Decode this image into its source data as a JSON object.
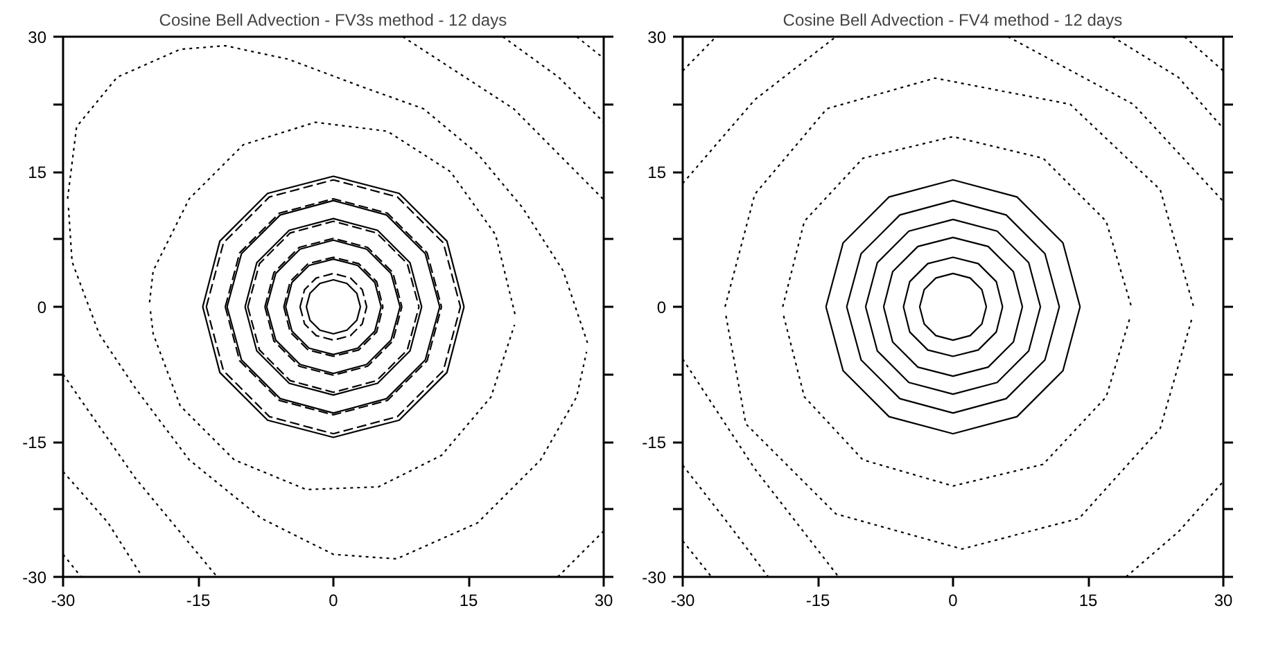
{
  "chart_data": [
    {
      "type": "line",
      "title": "Cosine Bell Advection - FV3s method - 12 days",
      "xlim": [
        -30,
        30
      ],
      "ylim": [
        -30,
        30
      ],
      "xticks": [
        -30,
        -15,
        0,
        15,
        30
      ],
      "yticks": [
        -30,
        {
          "value": -22.5,
          "label": null
        },
        -15,
        {
          "value": -7.5,
          "label": null
        },
        0,
        {
          "value": 7.5,
          "label": null
        },
        15,
        {
          "value": 22.5,
          "label": null
        },
        30
      ],
      "grid": false,
      "series": [
        {
          "color": "#000000",
          "line_style": "solid",
          "x": [
            -3,
            -2.6,
            -1.5,
            0,
            1.5,
            2.6,
            3
          ],
          "values": [
            0,
            1.5,
            2.6,
            3,
            2.6,
            1.5,
            0
          ]
        },
        {
          "color": "#000000",
          "line_style": "solid",
          "x": [
            -3,
            -2.6,
            -1.5,
            0,
            1.5,
            2.6,
            3
          ],
          "values": [
            0,
            -1.5,
            -2.6,
            -3,
            -2.6,
            -1.5,
            0
          ]
        },
        {
          "color": "#000000",
          "line_style": "solid",
          "x": [
            -5.3,
            -4.6,
            -2.7,
            0,
            2.7,
            4.6,
            5.3
          ],
          "values": [
            0,
            2.7,
            4.6,
            5.3,
            4.6,
            2.7,
            0
          ]
        },
        {
          "color": "#000000",
          "line_style": "solid",
          "x": [
            -5.3,
            -4.6,
            -2.7,
            0,
            2.7,
            4.6,
            5.3
          ],
          "values": [
            0,
            -2.7,
            -4.6,
            -5.3,
            -4.6,
            -2.7,
            0
          ]
        },
        {
          "color": "#000000",
          "line_style": "solid",
          "x": [
            -7.4,
            -6.4,
            -3.7,
            0,
            3.7,
            6.4,
            7.4
          ],
          "values": [
            0,
            3.7,
            6.4,
            7.4,
            6.4,
            3.7,
            0
          ]
        },
        {
          "color": "#000000",
          "line_style": "solid",
          "x": [
            -7.4,
            -6.4,
            -3.7,
            0,
            3.7,
            6.4,
            7.4
          ],
          "values": [
            0,
            -3.7,
            -6.4,
            -7.4,
            -6.4,
            -3.7,
            0
          ]
        },
        {
          "color": "#000000",
          "line_style": "solid",
          "x": [
            -9.8,
            -8.5,
            -4.9,
            0,
            4.9,
            8.5,
            9.8
          ],
          "values": [
            0,
            4.9,
            8.5,
            9.8,
            8.5,
            4.9,
            0
          ]
        },
        {
          "color": "#000000",
          "line_style": "solid",
          "x": [
            -9.8,
            -8.5,
            -4.9,
            0,
            4.9,
            8.5,
            9.8
          ],
          "values": [
            0,
            -4.9,
            -8.5,
            -9.8,
            -8.5,
            -4.9,
            0
          ]
        },
        {
          "color": "#000000",
          "line_style": "solid",
          "x": [
            -11.8,
            -10.2,
            -5.9,
            0,
            5.9,
            10.2,
            11.8
          ],
          "values": [
            0,
            5.9,
            10.2,
            11.8,
            10.2,
            5.9,
            0
          ]
        },
        {
          "color": "#000000",
          "line_style": "solid",
          "x": [
            -11.8,
            -10.2,
            -5.9,
            0,
            5.9,
            10.2,
            11.8
          ],
          "values": [
            0,
            -5.9,
            -10.2,
            -11.8,
            -10.2,
            -5.9,
            0
          ]
        },
        {
          "color": "#000000",
          "line_style": "solid",
          "x": [
            -14.5,
            -12.6,
            -7.3,
            0,
            7.3,
            12.6,
            14.5
          ],
          "values": [
            0,
            7.3,
            12.6,
            14.5,
            12.6,
            7.3,
            0
          ]
        },
        {
          "color": "#000000",
          "line_style": "solid",
          "x": [
            -14.5,
            -12.6,
            -7.3,
            0,
            7.3,
            12.6,
            14.5
          ],
          "values": [
            0,
            -7.3,
            -12.6,
            -14.5,
            -12.6,
            -7.3,
            0
          ]
        },
        {
          "color": "#000000",
          "line_style": "dashed",
          "x": [
            -3.7,
            -3.2,
            -1.9,
            0,
            1.9,
            3.2,
            3.7
          ],
          "values": [
            0,
            1.9,
            3.2,
            3.7,
            3.2,
            1.9,
            0
          ]
        },
        {
          "color": "#000000",
          "line_style": "dashed",
          "x": [
            -3.7,
            -3.2,
            -1.9,
            0,
            1.9,
            3.2,
            3.7
          ],
          "values": [
            0,
            -1.9,
            -3.2,
            -3.7,
            -3.2,
            -1.9,
            0
          ]
        },
        {
          "color": "#000000",
          "line_style": "dashed",
          "x": [
            -5.5,
            -4.8,
            -2.8,
            0,
            2.8,
            4.8,
            5.5
          ],
          "values": [
            0,
            2.8,
            4.8,
            5.5,
            4.8,
            2.8,
            0
          ]
        },
        {
          "color": "#000000",
          "line_style": "dashed",
          "x": [
            -5.5,
            -4.8,
            -2.8,
            0,
            2.8,
            4.8,
            5.5
          ],
          "values": [
            0,
            -2.8,
            -4.8,
            -5.5,
            -4.8,
            -2.8,
            0
          ]
        },
        {
          "color": "#000000",
          "line_style": "dashed",
          "x": [
            -7.6,
            -6.6,
            -3.8,
            0,
            3.8,
            6.6,
            7.6
          ],
          "values": [
            0,
            3.8,
            6.6,
            7.6,
            6.6,
            3.8,
            0
          ]
        },
        {
          "color": "#000000",
          "line_style": "dashed",
          "x": [
            -7.6,
            -6.6,
            -3.8,
            0,
            3.8,
            6.6,
            7.6
          ],
          "values": [
            0,
            -3.8,
            -6.6,
            -7.6,
            -6.6,
            -3.8,
            0
          ]
        },
        {
          "color": "#000000",
          "line_style": "dashed",
          "x": [
            -9.5,
            -8.2,
            -4.8,
            0,
            4.8,
            8.2,
            9.5
          ],
          "values": [
            0,
            4.8,
            8.2,
            9.5,
            8.2,
            4.8,
            0
          ]
        },
        {
          "color": "#000000",
          "line_style": "dashed",
          "x": [
            -9.5,
            -8.2,
            -4.8,
            0,
            4.8,
            8.2,
            9.5
          ],
          "values": [
            0,
            -4.8,
            -8.2,
            -9.5,
            -8.2,
            -4.8,
            0
          ]
        },
        {
          "color": "#000000",
          "line_style": "dashed",
          "x": [
            -12,
            -10.4,
            -6,
            0,
            6,
            10.4,
            12
          ],
          "values": [
            0,
            6,
            10.4,
            12,
            10.4,
            6,
            0
          ]
        },
        {
          "color": "#000000",
          "line_style": "dashed",
          "x": [
            -12,
            -10.4,
            -6,
            0,
            6,
            10.4,
            12
          ],
          "values": [
            0,
            -6,
            -10.4,
            -12,
            -10.4,
            -6,
            0
          ]
        },
        {
          "color": "#000000",
          "line_style": "dashed",
          "x": [
            -14.1,
            -12.2,
            -7.1,
            0,
            7.1,
            12.2,
            14.1
          ],
          "values": [
            0,
            7.1,
            12.2,
            14.1,
            12.2,
            7.1,
            0
          ]
        },
        {
          "color": "#000000",
          "line_style": "dashed",
          "x": [
            -14.1,
            -12.2,
            -7.1,
            0,
            7.1,
            12.2,
            14.1
          ],
          "values": [
            0,
            -7.1,
            -12.2,
            -14.1,
            -12.2,
            -7.1,
            0
          ]
        },
        {
          "color": "#000000",
          "line_style": "dotted",
          "x": [
            -20.4,
            -20,
            -16,
            -10,
            -2,
            6,
            13,
            18,
            20.2
          ],
          "values": [
            0.5,
            4,
            12,
            18,
            20.5,
            19.5,
            15,
            8,
            -1
          ]
        },
        {
          "color": "#000000",
          "line_style": "dotted",
          "x": [
            -20.3,
            -20,
            -17,
            -11,
            -3,
            5,
            12,
            17.5,
            20.1
          ],
          "values": [
            -0.5,
            -3,
            -11,
            -17,
            -20.3,
            -20,
            -16.5,
            -10,
            -2
          ]
        },
        {
          "color": "#000000",
          "line_style": "dotted",
          "x": [
            -29.5,
            -28.5,
            -24,
            -17,
            -12,
            -5,
            3,
            10,
            16,
            21,
            25.5,
            28.2
          ],
          "values": [
            12,
            20,
            25.5,
            28.6,
            29,
            27.5,
            24.5,
            22,
            17,
            11,
            4,
            -4
          ]
        },
        {
          "color": "#000000",
          "line_style": "dotted",
          "x": [
            -29.4,
            -29,
            -26,
            -22,
            -16,
            -8,
            0,
            7,
            16,
            23,
            27,
            28.1
          ],
          "values": [
            11,
            5,
            -3,
            -9,
            -17,
            -23.5,
            -27.5,
            -28,
            -24,
            -17,
            -10,
            -5
          ]
        },
        {
          "color": "#000000",
          "line_style": "dotted",
          "x": [
            7.7,
            20,
            30
          ],
          "values": [
            30,
            22,
            11.9
          ]
        },
        {
          "color": "#000000",
          "line_style": "dotted",
          "x": [
            18.8,
            25,
            30
          ],
          "values": [
            30,
            25.5,
            20.5
          ]
        },
        {
          "color": "#000000",
          "line_style": "dotted",
          "x": [
            27,
            30
          ],
          "values": [
            30,
            27.6
          ]
        },
        {
          "color": "#000000",
          "line_style": "dotted",
          "x": [
            -30,
            -22,
            -12.9
          ],
          "values": [
            -7.5,
            -19,
            -30
          ]
        },
        {
          "color": "#000000",
          "line_style": "dotted",
          "x": [
            -30,
            -25,
            -21.2
          ],
          "values": [
            -18.3,
            -24,
            -30
          ]
        },
        {
          "color": "#000000",
          "line_style": "dotted",
          "x": [
            -30,
            -28
          ],
          "values": [
            -27.5,
            -30
          ]
        },
        {
          "color": "#000000",
          "line_style": "dotted",
          "x": [
            24.9,
            30
          ],
          "values": [
            -30,
            -24.9
          ]
        }
      ]
    },
    {
      "type": "line",
      "title": "Cosine Bell Advection - FV4 method - 12 days",
      "xlim": [
        -30,
        30
      ],
      "ylim": [
        -30,
        30
      ],
      "xticks": [
        -30,
        -15,
        0,
        15,
        30
      ],
      "yticks": [
        -30,
        {
          "value": -22.5,
          "label": null
        },
        -15,
        {
          "value": -7.5,
          "label": null
        },
        0,
        {
          "value": 7.5,
          "label": null
        },
        15,
        {
          "value": 22.5,
          "label": null
        },
        30
      ],
      "grid": false,
      "series": [
        {
          "color": "#000000",
          "line_style": "solid",
          "x": [
            -3.7,
            -3.2,
            -1.9,
            0,
            1.9,
            3.2,
            3.7
          ],
          "values": [
            0,
            1.9,
            3.2,
            3.7,
            3.2,
            1.9,
            0
          ]
        },
        {
          "color": "#000000",
          "line_style": "solid",
          "x": [
            -3.7,
            -3.2,
            -1.9,
            0,
            1.9,
            3.2,
            3.7
          ],
          "values": [
            0,
            -1.9,
            -3.2,
            -3.7,
            -3.2,
            -1.9,
            0
          ]
        },
        {
          "color": "#000000",
          "line_style": "solid",
          "x": [
            -5.5,
            -4.8,
            -2.8,
            0,
            2.8,
            4.8,
            5.5
          ],
          "values": [
            0,
            2.8,
            4.8,
            5.5,
            4.8,
            2.8,
            0
          ]
        },
        {
          "color": "#000000",
          "line_style": "solid",
          "x": [
            -5.5,
            -4.8,
            -2.8,
            0,
            2.8,
            4.8,
            5.5
          ],
          "values": [
            0,
            -2.8,
            -4.8,
            -5.5,
            -4.8,
            -2.8,
            0
          ]
        },
        {
          "color": "#000000",
          "line_style": "solid",
          "x": [
            -7.7,
            -6.7,
            -3.9,
            0,
            3.9,
            6.7,
            7.7
          ],
          "values": [
            0,
            3.9,
            6.7,
            7.7,
            6.7,
            3.9,
            0
          ]
        },
        {
          "color": "#000000",
          "line_style": "solid",
          "x": [
            -7.7,
            -6.7,
            -3.9,
            0,
            3.9,
            6.7,
            7.7
          ],
          "values": [
            0,
            -3.9,
            -6.7,
            -7.7,
            -6.7,
            -3.9,
            0
          ]
        },
        {
          "color": "#000000",
          "line_style": "solid",
          "x": [
            -9.7,
            -8.4,
            -4.9,
            0,
            4.9,
            8.4,
            9.7
          ],
          "values": [
            0,
            4.9,
            8.4,
            9.7,
            8.4,
            4.9,
            0
          ]
        },
        {
          "color": "#000000",
          "line_style": "solid",
          "x": [
            -9.7,
            -8.4,
            -4.9,
            0,
            4.9,
            8.4,
            9.7
          ],
          "values": [
            0,
            -4.9,
            -8.4,
            -9.7,
            -8.4,
            -4.9,
            0
          ]
        },
        {
          "color": "#000000",
          "line_style": "solid",
          "x": [
            -11.8,
            -10.2,
            -5.9,
            0,
            5.9,
            10.2,
            11.8
          ],
          "values": [
            0,
            5.9,
            10.2,
            11.8,
            10.2,
            5.9,
            0
          ]
        },
        {
          "color": "#000000",
          "line_style": "solid",
          "x": [
            -11.8,
            -10.2,
            -5.9,
            0,
            5.9,
            10.2,
            11.8
          ],
          "values": [
            0,
            -5.9,
            -10.2,
            -11.8,
            -10.2,
            -5.9,
            0
          ]
        },
        {
          "color": "#000000",
          "line_style": "solid",
          "x": [
            -14.1,
            -12.2,
            -7.1,
            0,
            7.1,
            12.2,
            14.1
          ],
          "values": [
            0,
            7.1,
            12.2,
            14.1,
            12.2,
            7.1,
            0
          ]
        },
        {
          "color": "#000000",
          "line_style": "solid",
          "x": [
            -14.1,
            -12.2,
            -7.1,
            0,
            7.1,
            12.2,
            14.1
          ],
          "values": [
            0,
            -7.1,
            -12.2,
            -14.1,
            -12.2,
            -7.1,
            0
          ]
        },
        {
          "color": "#000000",
          "line_style": "dotted",
          "x": [
            -18.9,
            -16.5,
            -10,
            0,
            10,
            17,
            19.8
          ],
          "values": [
            0,
            9.5,
            16.5,
            18.9,
            16.5,
            9.5,
            0
          ]
        },
        {
          "color": "#000000",
          "line_style": "dotted",
          "x": [
            -18.8,
            -16.5,
            -10,
            0,
            10,
            17,
            19.7
          ],
          "values": [
            -1,
            -10,
            -17,
            -19.9,
            -17.5,
            -10,
            -1
          ]
        },
        {
          "color": "#000000",
          "line_style": "dotted",
          "x": [
            -25.3,
            -22,
            -14,
            -2,
            13,
            23,
            26.7
          ],
          "values": [
            0,
            12.5,
            22,
            25.4,
            22.5,
            13,
            0
          ]
        },
        {
          "color": "#000000",
          "line_style": "dotted",
          "x": [
            -25.2,
            -23,
            -13,
            1,
            14,
            23,
            26.6
          ],
          "values": [
            -1,
            -13,
            -23,
            -26.9,
            -23.5,
            -13.5,
            -1
          ]
        },
        {
          "color": "#000000",
          "line_style": "dotted",
          "x": [
            -30,
            -26.3
          ],
          "values": [
            26.2,
            30
          ]
        },
        {
          "color": "#000000",
          "line_style": "dotted",
          "x": [
            -30,
            -22,
            -13
          ],
          "values": [
            13.7,
            23,
            30
          ]
        },
        {
          "color": "#000000",
          "line_style": "dotted",
          "x": [
            6.1,
            20,
            30
          ],
          "values": [
            30,
            22.5,
            11.7
          ]
        },
        {
          "color": "#000000",
          "line_style": "dotted",
          "x": [
            17.7,
            25,
            30
          ],
          "values": [
            30,
            25.5,
            19.8
          ]
        },
        {
          "color": "#000000",
          "line_style": "dotted",
          "x": [
            25.7,
            30
          ],
          "values": [
            30,
            26.2
          ]
        },
        {
          "color": "#000000",
          "line_style": "dotted",
          "x": [
            -30,
            -22,
            -12.7
          ],
          "values": [
            -5.8,
            -18,
            -30
          ]
        },
        {
          "color": "#000000",
          "line_style": "dotted",
          "x": [
            -30,
            -25,
            -20.5
          ],
          "values": [
            -17.6,
            -24,
            -30
          ]
        },
        {
          "color": "#000000",
          "line_style": "dotted",
          "x": [
            -30,
            -26.8
          ],
          "values": [
            -26,
            -30
          ]
        },
        {
          "color": "#000000",
          "line_style": "dotted",
          "x": [
            19.2,
            25,
            30
          ],
          "values": [
            -30,
            -25,
            -19.4
          ]
        }
      ]
    }
  ]
}
